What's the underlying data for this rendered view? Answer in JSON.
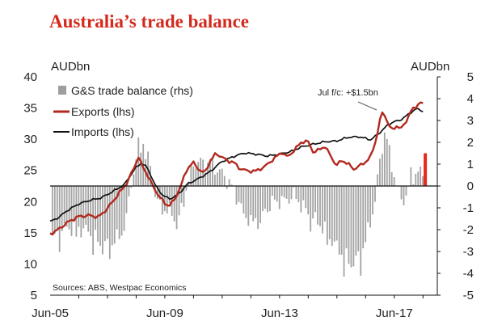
{
  "chart_data": {
    "type": "line+bar",
    "title": "Australia’s trade balance",
    "y_left_unit": "AUDbn",
    "y_right_unit": "AUDbn",
    "y_left_range": [
      5,
      40
    ],
    "y_right_range": [
      -5,
      5
    ],
    "y_left_ticks": [
      "40",
      "35",
      "30",
      "25",
      "20",
      "15",
      "10",
      "5"
    ],
    "y_right_ticks": [
      "5",
      "4",
      "3",
      "2",
      "1",
      "0",
      "-1",
      "-2",
      "-3",
      "-4",
      "-5"
    ],
    "x_range": [
      2005.42,
      2018.92
    ],
    "x_ticks": [
      {
        "t": 2005.42,
        "label": "Jun-05"
      },
      {
        "t": 2009.42,
        "label": "Jun-09"
      },
      {
        "t": 2013.42,
        "label": "Jun-13"
      },
      {
        "t": 2017.42,
        "label": "Jun-17"
      }
    ],
    "legend": [
      {
        "key": "balance",
        "label": "G&S trade balance (rhs)",
        "color": "#9e9e9e"
      },
      {
        "key": "exports",
        "label": "Exports (lhs)",
        "color": "#b22a1e"
      },
      {
        "key": "imports",
        "label": "Imports (lhs)",
        "color": "#111111"
      }
    ],
    "annotation": "Jul f/c: +$1.5bn",
    "source": "Sources: ABS, Westpac Economics",
    "forecast_bar": {
      "t": 2018.5,
      "value": 1.5,
      "color": "#e8261a"
    },
    "balance_anchors": [
      [
        2005.5,
        -2.4
      ],
      [
        2005.8,
        -2.0
      ],
      [
        2006.2,
        -1.9
      ],
      [
        2006.6,
        -2.0
      ],
      [
        2006.9,
        -2.2
      ],
      [
        2007.2,
        -2.8
      ],
      [
        2007.5,
        -2.6
      ],
      [
        2007.9,
        -2.3
      ],
      [
        2008.1,
        -1.2
      ],
      [
        2008.3,
        0.5
      ],
      [
        2008.5,
        1.8
      ],
      [
        2008.7,
        1.6
      ],
      [
        2008.9,
        1.0
      ],
      [
        2009.1,
        -0.5
      ],
      [
        2009.3,
        -1.0
      ],
      [
        2009.6,
        -1.2
      ],
      [
        2009.9,
        -1.6
      ],
      [
        2010.1,
        -0.5
      ],
      [
        2010.4,
        0.9
      ],
      [
        2010.6,
        1.1
      ],
      [
        2010.9,
        1.0
      ],
      [
        2011.1,
        0.9
      ],
      [
        2011.4,
        0.6
      ],
      [
        2011.7,
        0.1
      ],
      [
        2011.9,
        -0.4
      ],
      [
        2012.2,
        -1.3
      ],
      [
        2012.5,
        -1.7
      ],
      [
        2012.8,
        -1.4
      ],
      [
        2013.0,
        -1.0
      ],
      [
        2013.3,
        -0.6
      ],
      [
        2013.6,
        -0.7
      ],
      [
        2013.9,
        -0.4
      ],
      [
        2014.2,
        -0.9
      ],
      [
        2014.5,
        -1.4
      ],
      [
        2014.8,
        -1.7
      ],
      [
        2015.1,
        -2.2
      ],
      [
        2015.4,
        -2.8
      ],
      [
        2015.7,
        -3.2
      ],
      [
        2015.9,
        -3.6
      ],
      [
        2016.1,
        -3.4
      ],
      [
        2016.4,
        -2.6
      ],
      [
        2016.6,
        -1.6
      ],
      [
        2016.8,
        -0.3
      ],
      [
        2016.9,
        1.0
      ],
      [
        2017.0,
        1.8
      ],
      [
        2017.1,
        2.6
      ],
      [
        2017.25,
        1.5
      ],
      [
        2017.45,
        0.2
      ],
      [
        2017.65,
        -0.6
      ],
      [
        2017.85,
        -0.5
      ],
      [
        2018.0,
        0.4
      ],
      [
        2018.2,
        0.6
      ],
      [
        2018.42,
        0.6
      ]
    ],
    "exports_anchors": [
      [
        2005.42,
        14.8
      ],
      [
        2005.7,
        15.5
      ],
      [
        2006.0,
        16.6
      ],
      [
        2006.4,
        17.6
      ],
      [
        2006.8,
        17.8
      ],
      [
        2007.1,
        17.5
      ],
      [
        2007.4,
        18.8
      ],
      [
        2007.8,
        21.2
      ],
      [
        2008.1,
        23.0
      ],
      [
        2008.35,
        25.5
      ],
      [
        2008.5,
        27.2
      ],
      [
        2008.6,
        26.0
      ],
      [
        2008.8,
        24.4
      ],
      [
        2009.0,
        22.5
      ],
      [
        2009.2,
        21.0
      ],
      [
        2009.4,
        19.8
      ],
      [
        2009.55,
        19.3
      ],
      [
        2009.75,
        20.2
      ],
      [
        2010.0,
        22.8
      ],
      [
        2010.2,
        25.3
      ],
      [
        2010.4,
        26.3
      ],
      [
        2010.6,
        25.2
      ],
      [
        2010.8,
        24.5
      ],
      [
        2011.0,
        26.5
      ],
      [
        2011.2,
        27.7
      ],
      [
        2011.4,
        27.2
      ],
      [
        2011.6,
        26.5
      ],
      [
        2011.8,
        26.4
      ],
      [
        2012.0,
        25.4
      ],
      [
        2012.3,
        24.9
      ],
      [
        2012.6,
        24.9
      ],
      [
        2012.9,
        25.6
      ],
      [
        2013.2,
        26.8
      ],
      [
        2013.5,
        27.9
      ],
      [
        2013.7,
        27.1
      ],
      [
        2014.0,
        28.6
      ],
      [
        2014.2,
        29.6
      ],
      [
        2014.4,
        29.7
      ],
      [
        2014.6,
        27.9
      ],
      [
        2014.8,
        28.3
      ],
      [
        2015.0,
        28.9
      ],
      [
        2015.2,
        27.3
      ],
      [
        2015.4,
        25.8
      ],
      [
        2015.6,
        26.6
      ],
      [
        2015.8,
        26.1
      ],
      [
        2016.0,
        25.2
      ],
      [
        2016.2,
        25.7
      ],
      [
        2016.4,
        26.3
      ],
      [
        2016.6,
        27.2
      ],
      [
        2016.8,
        30.2
      ],
      [
        2016.95,
        33.8
      ],
      [
        2017.05,
        34.4
      ],
      [
        2017.2,
        32.5
      ],
      [
        2017.35,
        31.4
      ],
      [
        2017.5,
        32.2
      ],
      [
        2017.65,
        31.6
      ],
      [
        2017.8,
        32.6
      ],
      [
        2018.0,
        34.5
      ],
      [
        2018.2,
        35.3
      ],
      [
        2018.3,
        36.0
      ],
      [
        2018.42,
        35.6
      ]
    ],
    "imports_anchors": [
      [
        2005.42,
        16.8
      ],
      [
        2005.7,
        17.4
      ],
      [
        2006.0,
        18.5
      ],
      [
        2006.4,
        19.6
      ],
      [
        2006.8,
        20.2
      ],
      [
        2007.2,
        20.6
      ],
      [
        2007.6,
        21.6
      ],
      [
        2008.0,
        22.7
      ],
      [
        2008.4,
        25.4
      ],
      [
        2008.6,
        26.2
      ],
      [
        2008.8,
        25.5
      ],
      [
        2009.1,
        22.5
      ],
      [
        2009.35,
        21.0
      ],
      [
        2009.6,
        20.4
      ],
      [
        2009.9,
        21.2
      ],
      [
        2010.2,
        22.8
      ],
      [
        2010.6,
        23.7
      ],
      [
        2011.0,
        24.8
      ],
      [
        2011.4,
        26.4
      ],
      [
        2011.8,
        27.2
      ],
      [
        2012.2,
        27.8
      ],
      [
        2012.6,
        27.6
      ],
      [
        2013.0,
        27.3
      ],
      [
        2013.4,
        27.6
      ],
      [
        2013.8,
        28.0
      ],
      [
        2014.2,
        28.8
      ],
      [
        2014.6,
        29.2
      ],
      [
        2015.0,
        29.6
      ],
      [
        2015.4,
        29.7
      ],
      [
        2015.8,
        30.3
      ],
      [
        2016.2,
        30.4
      ],
      [
        2016.6,
        29.9
      ],
      [
        2016.9,
        31.0
      ],
      [
        2017.2,
        32.3
      ],
      [
        2017.4,
        32.8
      ],
      [
        2017.6,
        33.0
      ],
      [
        2017.8,
        33.6
      ],
      [
        2018.0,
        34.3
      ],
      [
        2018.2,
        34.9
      ],
      [
        2018.42,
        34.5
      ]
    ]
  }
}
